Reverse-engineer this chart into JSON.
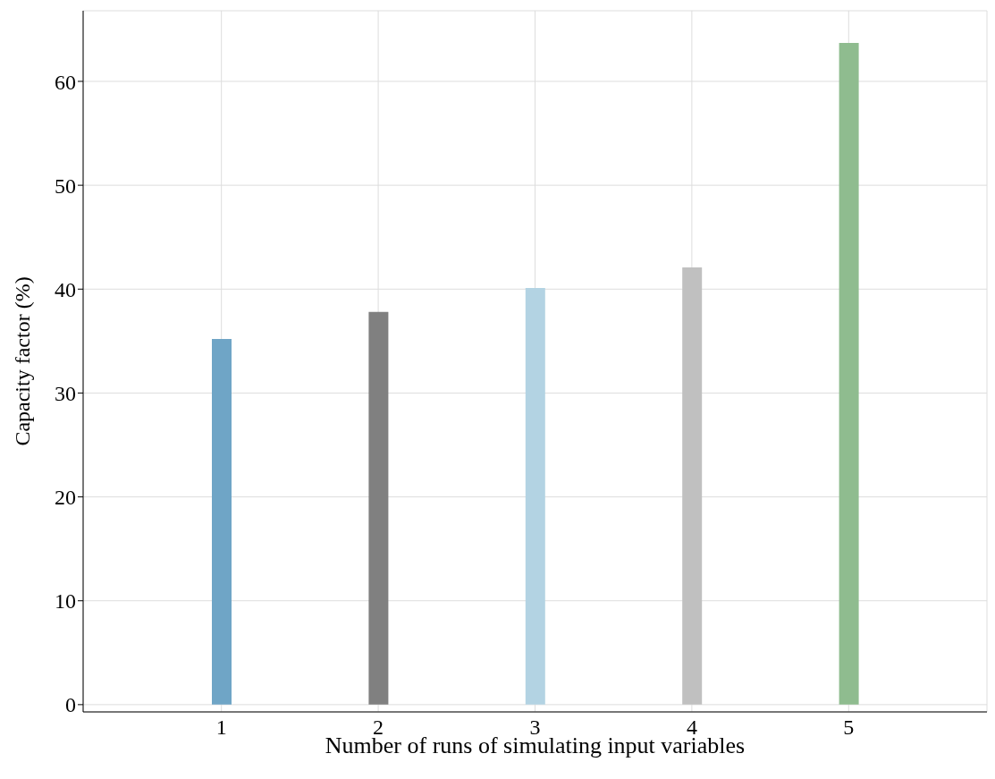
{
  "chart_data": {
    "type": "bar",
    "xlabel": "Number of runs of simulating input variables",
    "ylabel": "Capacity factor (%)",
    "categories": [
      "1",
      "2",
      "3",
      "4",
      "5"
    ],
    "values": [
      35.2,
      37.8,
      40.1,
      42.1,
      63.7
    ],
    "colors": [
      "#6fa5c6",
      "#808080",
      "#b3d3e3",
      "#c0c0c0",
      "#8fbc8f"
    ],
    "ylim": [
      -0.7,
      66.8
    ],
    "yticks": [
      0,
      10,
      20,
      30,
      40,
      50,
      60
    ],
    "grid": true
  }
}
